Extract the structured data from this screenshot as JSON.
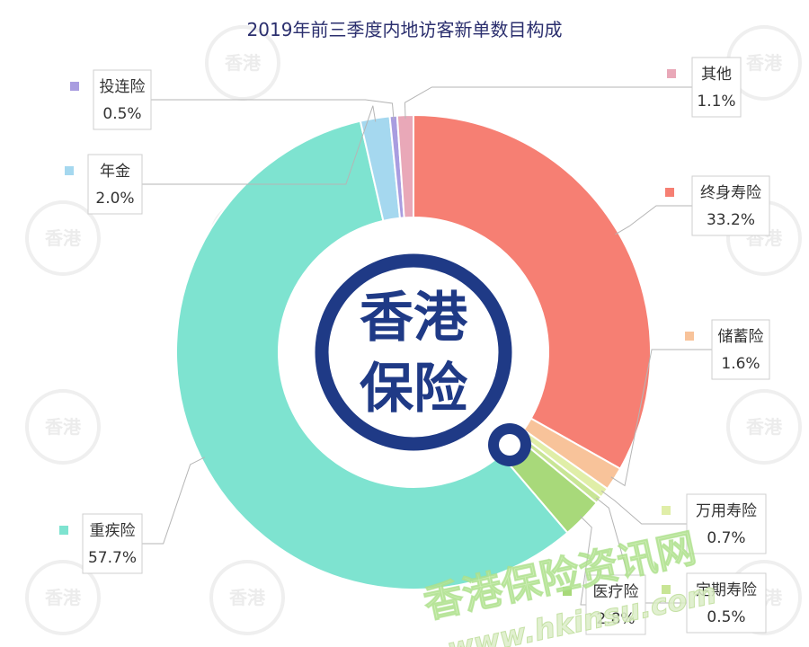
{
  "chart_data": {
    "type": "pie",
    "title": "2019年前三季度内地访客新单数目构成",
    "series": [
      {
        "name": "终身寿险",
        "value": 33.2,
        "display": "33.2%",
        "color": "#f67f73"
      },
      {
        "name": "储蓄险",
        "value": 1.6,
        "display": "1.6%",
        "color": "#f8c39a"
      },
      {
        "name": "万用寿险",
        "value": 0.7,
        "display": "0.7%",
        "color": "#e0eea8"
      },
      {
        "name": "定期寿险",
        "value": 0.5,
        "display": "0.5%",
        "color": "#c8e595"
      },
      {
        "name": "医疗险",
        "value": 2.8,
        "display": "2.8%",
        "color": "#a8d97a"
      },
      {
        "name": "重疾险",
        "value": 57.7,
        "display": "57.7%",
        "color": "#7ee3d0"
      },
      {
        "name": "年金",
        "value": 2.0,
        "display": "2.0%",
        "color": "#a5d8ef"
      },
      {
        "name": "投连险",
        "value": 0.5,
        "display": "0.5%",
        "color": "#a99de0"
      },
      {
        "name": "其他",
        "value": 1.1,
        "display": "1.1%",
        "color": "#e9a8b8"
      }
    ]
  },
  "center_logo": {
    "line1": "香港",
    "line2": "保险",
    "color": "#1f3a86"
  },
  "watermark": {
    "tile_text": "香港保险",
    "site_name": "香港保险资讯网",
    "site_url": "www.hkinsu.com"
  }
}
